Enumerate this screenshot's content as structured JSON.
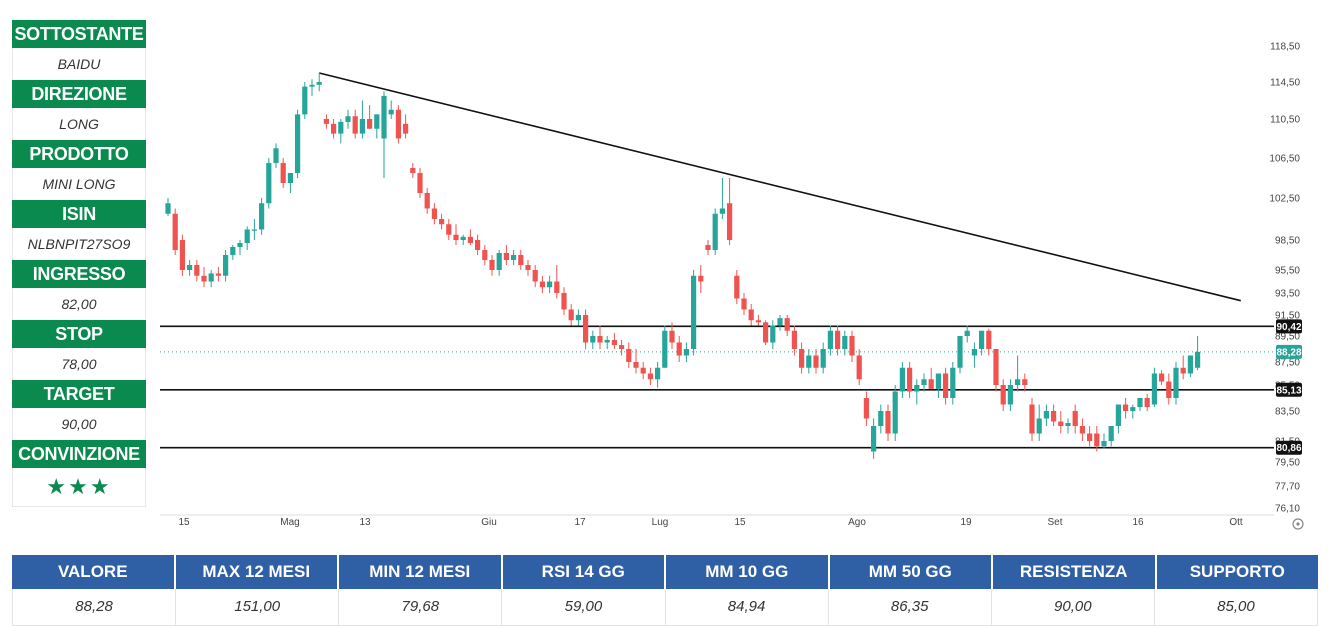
{
  "sidebar": {
    "items": [
      {
        "label": "SOTTOSTANTE",
        "value": "BAIDU"
      },
      {
        "label": "DIREZIONE",
        "value": "LONG"
      },
      {
        "label": "PRODOTTO",
        "value": "MINI LONG"
      },
      {
        "label": "ISIN",
        "value": "NLBNPIT27SO9"
      },
      {
        "label": "INGRESSO",
        "value": "82,00"
      },
      {
        "label": "STOP",
        "value": "78,00"
      },
      {
        "label": "TARGET",
        "value": "90,00"
      },
      {
        "label": "CONVINZIONE",
        "value": "★★★"
      }
    ]
  },
  "colors": {
    "header_green": "#0b8a4f",
    "header_blue": "#2f5fa5",
    "candle_up": "#26a69a",
    "candle_down": "#ef5350"
  },
  "chart_data": {
    "type": "candlestick",
    "title": "",
    "y_ticks": [
      76.1,
      77.7,
      79.5,
      81.5,
      83.5,
      85.5,
      87.5,
      89.5,
      91.5,
      93.5,
      95.5,
      98.5,
      102.5,
      106.5,
      110.5,
      114.5,
      118.5
    ],
    "y_tick_labels": [
      "76,10",
      "77,70",
      "79,50",
      "81,50",
      "83,50",
      "85,50",
      "87,50",
      "89,50",
      "91,50",
      "93,50",
      "95,50",
      "98,50",
      "102,50",
      "106,50",
      "110,50",
      "114,50",
      "118,50"
    ],
    "x_labels": [
      "15",
      "Mag",
      "13",
      "Giu",
      "17",
      "Lug",
      "15",
      "Ago",
      "19",
      "Set",
      "16",
      "Ott"
    ],
    "horizontal_levels": [
      {
        "value": 90.42,
        "label": "90,42"
      },
      {
        "value": 85.13,
        "label": "85,13"
      },
      {
        "value": 80.86,
        "label": "80,86"
      }
    ],
    "current_price": {
      "value": 88.28,
      "label": "88,28"
    },
    "trendline": {
      "start": {
        "bar": 21,
        "value": 115.5
      },
      "end": {
        "bar": 149,
        "value": 92.8
      }
    },
    "candles": [
      [
        101.0,
        102.5,
        100.8,
        102.0
      ],
      [
        101.0,
        101.5,
        97.0,
        97.5
      ],
      [
        98.5,
        99.0,
        95.0,
        95.5
      ],
      [
        95.5,
        96.5,
        95.0,
        96.0
      ],
      [
        96.0,
        96.5,
        94.5,
        95.0
      ],
      [
        95.0,
        95.8,
        94.0,
        94.5
      ],
      [
        94.5,
        95.5,
        94.0,
        95.2
      ],
      [
        95.2,
        95.8,
        94.5,
        95.0
      ],
      [
        95.0,
        97.5,
        94.5,
        97.0
      ],
      [
        97.0,
        98.0,
        96.5,
        97.8
      ],
      [
        97.8,
        98.5,
        97.0,
        98.2
      ],
      [
        98.2,
        99.8,
        97.5,
        99.5
      ],
      [
        99.5,
        100.5,
        98.5,
        99.5
      ],
      [
        99.5,
        102.5,
        99.0,
        102.0
      ],
      [
        102.0,
        106.5,
        101.5,
        106.0
      ],
      [
        106.0,
        108.0,
        105.5,
        107.5
      ],
      [
        106.0,
        106.5,
        103.5,
        104.0
      ],
      [
        104.0,
        105.0,
        103.0,
        105.0
      ],
      [
        105.0,
        111.5,
        104.5,
        111.0
      ],
      [
        111.0,
        114.5,
        110.5,
        114.0
      ],
      [
        114.0,
        114.8,
        113.0,
        114.2
      ],
      [
        114.2,
        115.5,
        113.5,
        114.5
      ],
      [
        110.5,
        111.0,
        109.5,
        110.0
      ],
      [
        110.0,
        110.5,
        108.5,
        109.0
      ],
      [
        109.0,
        110.5,
        108.0,
        110.2
      ],
      [
        110.2,
        111.5,
        109.5,
        110.8
      ],
      [
        110.8,
        111.5,
        108.5,
        109.0
      ],
      [
        109.0,
        112.5,
        108.5,
        110.5
      ],
      [
        110.5,
        112.0,
        109.5,
        109.5
      ],
      [
        109.5,
        111.0,
        108.5,
        111.0
      ],
      [
        108.5,
        113.5,
        104.5,
        113.0
      ],
      [
        111.0,
        112.5,
        110.5,
        111.5
      ],
      [
        111.5,
        112.0,
        108.0,
        108.5
      ],
      [
        110.0,
        111.0,
        108.5,
        109.0
      ],
      [
        105.5,
        106.0,
        104.5,
        105.0
      ],
      [
        105.0,
        105.5,
        102.5,
        103.0
      ],
      [
        103.0,
        103.5,
        101.0,
        101.5
      ],
      [
        101.5,
        102.0,
        100.0,
        100.5
      ],
      [
        100.5,
        101.0,
        99.5,
        100.0
      ],
      [
        100.0,
        100.5,
        98.5,
        99.0
      ],
      [
        99.0,
        100.0,
        98.0,
        98.5
      ],
      [
        98.5,
        99.0,
        98.0,
        98.8
      ],
      [
        98.8,
        99.5,
        98.0,
        98.2
      ],
      [
        98.5,
        99.0,
        97.0,
        97.5
      ],
      [
        97.5,
        98.0,
        96.0,
        96.5
      ],
      [
        96.5,
        97.0,
        95.0,
        95.5
      ],
      [
        95.5,
        97.5,
        95.0,
        97.2
      ],
      [
        97.2,
        98.0,
        96.0,
        96.5
      ],
      [
        96.5,
        97.5,
        96.0,
        97.0
      ],
      [
        97.0,
        97.5,
        95.5,
        96.0
      ],
      [
        96.0,
        96.5,
        95.0,
        95.5
      ],
      [
        95.5,
        96.0,
        94.0,
        94.5
      ],
      [
        94.5,
        95.0,
        93.5,
        94.0
      ],
      [
        94.0,
        95.0,
        93.5,
        94.5
      ],
      [
        94.5,
        96.0,
        93.0,
        93.5
      ],
      [
        93.5,
        94.0,
        91.5,
        92.0
      ],
      [
        92.0,
        92.5,
        90.5,
        91.0
      ],
      [
        91.0,
        92.0,
        90.5,
        91.5
      ],
      [
        91.5,
        92.0,
        88.5,
        89.0
      ],
      [
        89.0,
        90.0,
        88.5,
        89.5
      ],
      [
        89.5,
        90.5,
        88.5,
        89.0
      ],
      [
        89.0,
        89.5,
        88.5,
        89.2
      ],
      [
        89.2,
        89.8,
        88.5,
        88.8
      ],
      [
        88.8,
        89.2,
        88.0,
        88.5
      ],
      [
        88.5,
        89.0,
        87.0,
        87.5
      ],
      [
        87.5,
        88.5,
        86.5,
        87.0
      ],
      [
        87.0,
        87.5,
        86.0,
        86.5
      ],
      [
        86.5,
        87.0,
        85.5,
        86.0
      ],
      [
        86.0,
        87.5,
        85.3,
        87.0
      ],
      [
        87.0,
        90.5,
        87.0,
        90.0
      ],
      [
        90.0,
        90.8,
        88.5,
        89.0
      ],
      [
        89.0,
        89.5,
        87.5,
        88.0
      ],
      [
        88.0,
        89.0,
        87.5,
        88.5
      ],
      [
        88.5,
        95.5,
        88.0,
        95.0
      ],
      [
        95.0,
        96.0,
        93.5,
        94.5
      ],
      [
        98.0,
        98.5,
        97.0,
        97.5
      ],
      [
        97.5,
        101.5,
        97.0,
        101.0
      ],
      [
        101.0,
        104.5,
        100.5,
        101.5
      ],
      [
        102.0,
        104.5,
        98.0,
        98.5
      ],
      [
        95.0,
        95.5,
        92.5,
        93.0
      ],
      [
        93.0,
        93.5,
        91.5,
        92.0
      ],
      [
        92.0,
        92.5,
        90.5,
        91.0
      ],
      [
        91.0,
        91.5,
        90.5,
        90.8
      ],
      [
        90.8,
        91.0,
        88.8,
        89.0
      ],
      [
        89.0,
        91.0,
        88.5,
        90.5
      ],
      [
        90.5,
        91.5,
        90.0,
        91.2
      ],
      [
        91.2,
        91.5,
        89.5,
        90.0
      ],
      [
        90.0,
        90.5,
        88.0,
        88.5
      ],
      [
        88.5,
        89.0,
        86.5,
        87.0
      ],
      [
        87.0,
        88.5,
        86.5,
        88.0
      ],
      [
        88.0,
        88.5,
        86.5,
        87.0
      ],
      [
        87.0,
        89.0,
        86.5,
        88.5
      ],
      [
        88.5,
        90.5,
        88.0,
        90.0
      ],
      [
        90.0,
        90.5,
        88.0,
        88.5
      ],
      [
        88.5,
        90.0,
        88.0,
        89.5
      ],
      [
        89.5,
        90.0,
        87.5,
        88.0
      ],
      [
        88.0,
        88.5,
        85.5,
        86.0
      ],
      [
        84.5,
        85.0,
        82.5,
        83.0
      ],
      [
        80.5,
        83.0,
        79.8,
        82.5
      ],
      [
        82.5,
        84.0,
        82.0,
        83.5
      ],
      [
        83.5,
        84.0,
        81.5,
        82.0
      ],
      [
        82.0,
        85.5,
        81.5,
        85.0
      ],
      [
        85.0,
        87.5,
        84.5,
        87.0
      ],
      [
        87.0,
        87.5,
        84.5,
        85.0
      ],
      [
        85.0,
        86.0,
        84.0,
        85.5
      ],
      [
        85.5,
        86.5,
        85.0,
        86.0
      ],
      [
        86.0,
        87.0,
        85.5,
        85.2
      ],
      [
        85.2,
        86.5,
        84.5,
        86.5
      ],
      [
        86.5,
        87.0,
        84.0,
        84.5
      ],
      [
        84.5,
        87.5,
        84.0,
        87.0
      ],
      [
        87.0,
        89.5,
        86.5,
        89.5
      ],
      [
        89.5,
        90.5,
        89.0,
        90.0
      ],
      [
        88.0,
        89.0,
        87.0,
        88.5
      ],
      [
        88.5,
        90.0,
        88.0,
        90.0
      ],
      [
        90.0,
        90.2,
        88.0,
        88.5
      ],
      [
        88.5,
        88.5,
        85.0,
        85.5
      ],
      [
        85.5,
        86.0,
        83.5,
        84.0
      ],
      [
        84.0,
        86.0,
        83.5,
        85.5
      ],
      [
        85.5,
        88.0,
        85.0,
        86.0
      ],
      [
        86.0,
        86.5,
        85.0,
        85.5
      ],
      [
        84.0,
        84.5,
        81.5,
        82.0
      ],
      [
        82.0,
        84.0,
        81.5,
        83.0
      ],
      [
        83.0,
        84.0,
        82.5,
        83.5
      ],
      [
        83.5,
        84.0,
        82.5,
        82.8
      ],
      [
        82.8,
        83.5,
        82.0,
        82.5
      ],
      [
        82.5,
        83.0,
        82.0,
        82.7
      ],
      [
        83.5,
        84.0,
        82.0,
        82.5
      ],
      [
        82.5,
        83.0,
        81.5,
        82.0
      ],
      [
        82.0,
        82.5,
        81.0,
        81.5
      ],
      [
        82.0,
        82.5,
        80.5,
        81.0
      ],
      [
        81.0,
        82.0,
        80.8,
        81.5
      ],
      [
        81.5,
        82.5,
        81.0,
        82.5
      ],
      [
        82.5,
        84.0,
        82.0,
        84.0
      ],
      [
        84.0,
        84.5,
        83.0,
        83.5
      ],
      [
        83.5,
        84.0,
        83.0,
        83.8
      ],
      [
        83.8,
        84.5,
        83.5,
        84.5
      ],
      [
        84.5,
        84.8,
        83.5,
        83.8
      ],
      [
        84.0,
        87.0,
        83.8,
        86.5
      ],
      [
        86.5,
        86.8,
        85.5,
        85.8
      ],
      [
        85.8,
        86.5,
        84.0,
        84.5
      ],
      [
        84.5,
        87.5,
        84.0,
        87.0
      ],
      [
        87.0,
        88.0,
        86.0,
        86.5
      ],
      [
        86.5,
        88.0,
        86.2,
        88.0
      ],
      [
        87.0,
        89.5,
        86.8,
        88.28
      ]
    ]
  },
  "bottom_table": {
    "headers": [
      "VALORE",
      "MAX 12 MESI",
      "MIN 12 MESI",
      "RSI 14 GG",
      "MM 10 GG",
      "MM 50 GG",
      "RESISTENZA",
      "SUPPORTO"
    ],
    "values": [
      "88,28",
      "151,00",
      "79,68",
      "59,00",
      "84,94",
      "86,35",
      "90,00",
      "85,00"
    ]
  }
}
